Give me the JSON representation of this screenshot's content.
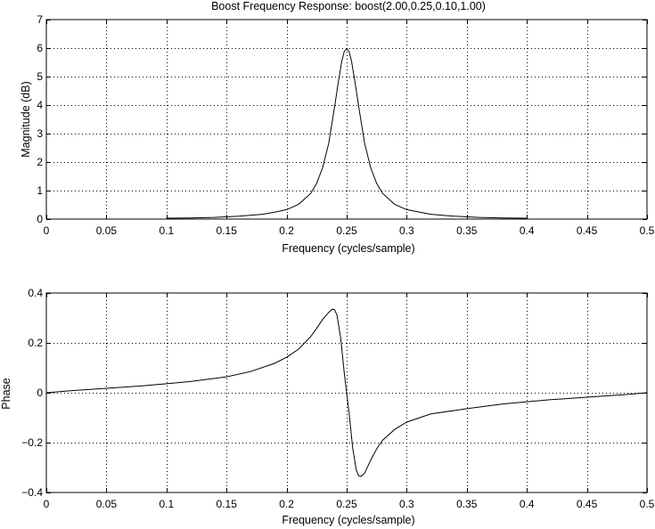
{
  "chart_data": [
    {
      "type": "line",
      "title": "Boost Frequency Response: boost(2.00,0.25,0.10,1.00)",
      "xlabel": "Frequency (cycles/sample)",
      "ylabel": "Magnitude (dB)",
      "xlim": [
        0,
        0.5
      ],
      "ylim": [
        0,
        7
      ],
      "xticks": [
        0,
        0.05,
        0.1,
        0.15,
        0.2,
        0.25,
        0.3,
        0.35,
        0.4,
        0.45,
        0.5
      ],
      "xtick_labels": [
        "0",
        "0.05",
        "0.1",
        "0.15",
        "0.2",
        "0.25",
        "0.3",
        "0.35",
        "0.4",
        "0.45",
        "0.5"
      ],
      "yticks": [
        0,
        1,
        2,
        3,
        4,
        5,
        6,
        7
      ],
      "ytick_labels": [
        "0",
        "1",
        "2",
        "3",
        "4",
        "5",
        "6",
        "7"
      ],
      "grid": true,
      "grid_style": "dotted",
      "line_color": "#000000",
      "series": [
        {
          "x": [
            0.1,
            0.12,
            0.14,
            0.16,
            0.18,
            0.19,
            0.2,
            0.21,
            0.22,
            0.225,
            0.23,
            0.235,
            0.24,
            0.243,
            0.246,
            0.248,
            0.25,
            0.252,
            0.254,
            0.257,
            0.26,
            0.265,
            0.27,
            0.275,
            0.28,
            0.29,
            0.3,
            0.32,
            0.34,
            0.36,
            0.38,
            0.4
          ],
          "y": [
            0.03,
            0.04,
            0.06,
            0.1,
            0.17,
            0.24,
            0.33,
            0.52,
            0.9,
            1.25,
            1.8,
            2.65,
            3.95,
            4.8,
            5.55,
            5.88,
            5.98,
            5.88,
            5.55,
            4.8,
            3.95,
            2.65,
            1.8,
            1.25,
            0.9,
            0.52,
            0.33,
            0.17,
            0.1,
            0.06,
            0.04,
            0.03
          ]
        }
      ]
    },
    {
      "type": "line",
      "title": "",
      "xlabel": "Frequency (cycles/sample)",
      "ylabel": "Phase",
      "xlim": [
        0,
        0.5
      ],
      "ylim": [
        -0.4,
        0.4
      ],
      "xticks": [
        0,
        0.05,
        0.1,
        0.15,
        0.2,
        0.25,
        0.3,
        0.35,
        0.4,
        0.45,
        0.5
      ],
      "xtick_labels": [
        "0",
        "0.05",
        "0.1",
        "0.15",
        "0.2",
        "0.25",
        "0.3",
        "0.35",
        "0.4",
        "0.45",
        "0.5"
      ],
      "yticks": [
        -0.4,
        -0.2,
        0,
        0.2,
        0.4
      ],
      "ytick_labels": [
        "−0.4",
        "−0.2",
        "0",
        "0.2",
        "0.4"
      ],
      "grid": true,
      "grid_style": "dotted",
      "line_color": "#000000",
      "series": [
        {
          "x": [
            0,
            0.02,
            0.05,
            0.08,
            0.1,
            0.12,
            0.15,
            0.17,
            0.19,
            0.2,
            0.21,
            0.22,
            0.225,
            0.23,
            0.235,
            0.238,
            0.24,
            0.242,
            0.245,
            0.248,
            0.25,
            0.252,
            0.255,
            0.258,
            0.26,
            0.262,
            0.265,
            0.27,
            0.275,
            0.28,
            0.29,
            0.3,
            0.32,
            0.35,
            0.38,
            0.4,
            0.42,
            0.45,
            0.48,
            0.5
          ],
          "y": [
            0,
            0.008,
            0.018,
            0.028,
            0.036,
            0.045,
            0.064,
            0.085,
            0.118,
            0.142,
            0.175,
            0.225,
            0.258,
            0.294,
            0.322,
            0.335,
            0.333,
            0.31,
            0.22,
            0.08,
            0,
            -0.08,
            -0.22,
            -0.31,
            -0.333,
            -0.335,
            -0.322,
            -0.27,
            -0.225,
            -0.19,
            -0.147,
            -0.118,
            -0.085,
            -0.064,
            -0.045,
            -0.036,
            -0.028,
            -0.018,
            -0.008,
            0
          ]
        }
      ]
    }
  ]
}
